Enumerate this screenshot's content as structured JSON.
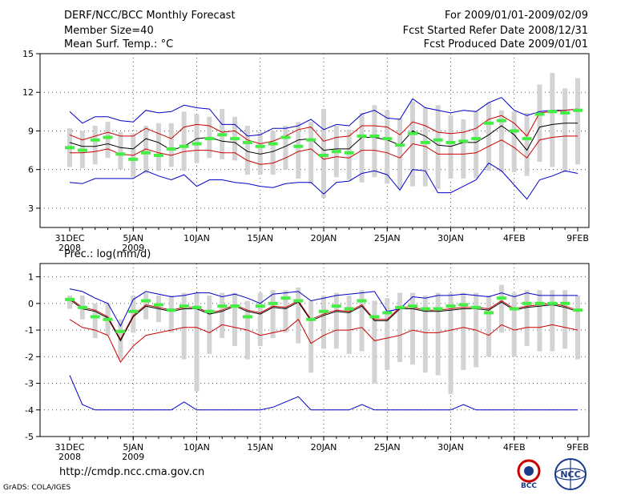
{
  "header": {
    "line1_left": "DERF/NCC/BCC Monthly Forecast",
    "line2_left": "Member Size=40",
    "line3_left": "Mean Surf. Temp.: °C",
    "line1_right": "For 2009/01/01-2009/02/09",
    "line2_right": "Fcst Started Refer Date 2008/12/31",
    "line3_right": "Fcst Produced Date 2009/01/01"
  },
  "footer": {
    "url": "http://cmdp.ncc.cma.gov.cn",
    "grads": "GrADS: COLA/IGES",
    "logo_bcc": "BCC",
    "logo_ncc": "NCC"
  },
  "colors": {
    "box": "#d3d3d3",
    "marker": "#44ee44",
    "mean": "#000000",
    "spread": "#cc0000",
    "extreme": "#0000cc",
    "grid": "#555555"
  },
  "chart_data": [
    {
      "type": "box",
      "title": "Mean Surf. Temp.: °C",
      "ylim": [
        1.5,
        15
      ],
      "yticks": [
        "3",
        "6",
        "9",
        "12",
        "15"
      ],
      "xticks": [
        "31DEC",
        "5JAN",
        "10JAN",
        "15JAN",
        "20JAN",
        "25JAN",
        "30JAN",
        "4FEB",
        "9FEB"
      ],
      "xtick_sub": [
        "2008",
        "2009",
        "",
        "",
        "",
        "",
        "",
        "",
        ""
      ],
      "series": [
        {
          "name": "median",
          "values": [
            7.7,
            7.5,
            8.3,
            8.5,
            7.2,
            6.8,
            7.3,
            7.1,
            7.6,
            7.8,
            8.0,
            8.4,
            8.7,
            8.4,
            8.1,
            7.8,
            8.0,
            8.5,
            7.8,
            8.3,
            7.1,
            7.4,
            7.3,
            8.6,
            8.6,
            8.4,
            7.9,
            8.8,
            8.1,
            8.3,
            8.1,
            8.2,
            8.4,
            9.6,
            9.8,
            9.0,
            8.4,
            10.3,
            10.5,
            10.4,
            10.6
          ]
        },
        {
          "name": "q1",
          "values": [
            6.5,
            6.6,
            6.8,
            7.2,
            6.4,
            6.1,
            6.4,
            6.4,
            6.8,
            6.8,
            7.0,
            7.2,
            7.3,
            7.0,
            6.5,
            6.2,
            6.3,
            6.8,
            6.6,
            7.0,
            6.2,
            6.6,
            6.3,
            7.1,
            7.0,
            6.8,
            6.3,
            7.3,
            6.8,
            6.5,
            6.5,
            6.4,
            6.7,
            7.3,
            7.5,
            6.9,
            6.5,
            7.7,
            8.0,
            7.7,
            8.0
          ]
        },
        {
          "name": "q3",
          "values": [
            8.7,
            8.8,
            9.2,
            9.3,
            8.4,
            8.1,
            8.8,
            8.6,
            8.5,
            9.5,
            9.6,
            9.7,
            9.9,
            9.3,
            8.8,
            8.4,
            8.8,
            9.3,
            9.0,
            9.4,
            8.2,
            8.8,
            8.8,
            10.0,
            10.1,
            9.8,
            9.2,
            10.2,
            9.8,
            9.8,
            9.6,
            9.5,
            9.6,
            10.4,
            10.5,
            9.8,
            9.6,
            11.9,
            12.3,
            12.0,
            12.5
          ]
        },
        {
          "name": "min",
          "values": [
            6.2,
            6.1,
            6.4,
            6.9,
            6.0,
            5.4,
            5.7,
            5.9,
            6.2,
            5.9,
            6.5,
            6.9,
            6.8,
            6.7,
            5.6,
            5.6,
            5.6,
            6.0,
            5.3,
            4.9,
            3.8,
            5.4,
            5.2,
            5.0,
            5.4,
            4.9,
            4.5,
            4.7,
            4.7,
            4.5,
            5.3,
            5.3,
            5.3,
            5.9,
            5.8,
            5.8,
            5.5,
            6.6,
            6.2,
            5.8,
            6.4
          ]
        },
        {
          "name": "max",
          "values": [
            9.2,
            9.0,
            9.4,
            9.7,
            8.9,
            8.8,
            9.4,
            9.6,
            9.6,
            10.5,
            10.3,
            10.1,
            10.7,
            10.1,
            9.4,
            8.9,
            9.0,
            9.4,
            9.7,
            9.7,
            10.7,
            9.4,
            9.1,
            10.4,
            11.0,
            10.6,
            10.0,
            11.3,
            10.8,
            11.0,
            10.2,
            9.9,
            10.5,
            11.2,
            10.6,
            10.5,
            10.4,
            12.6,
            13.5,
            12.3,
            13.1
          ]
        },
        {
          "name": "mean",
          "values": [
            8.1,
            7.8,
            7.8,
            8.0,
            7.7,
            7.6,
            8.4,
            8.1,
            7.5,
            7.8,
            8.4,
            8.5,
            8.2,
            8.1,
            7.4,
            7.2,
            7.4,
            7.8,
            8.3,
            8.4,
            7.5,
            7.6,
            7.6,
            8.5,
            8.5,
            8.3,
            7.9,
            9.0,
            8.6,
            7.9,
            7.8,
            8.1,
            8.1,
            8.7,
            9.4,
            8.7,
            7.5,
            9.3,
            9.5,
            9.6,
            9.6
          ]
        },
        {
          "name": "mean_plus_sd",
          "values": [
            8.7,
            8.3,
            8.6,
            8.9,
            8.6,
            8.6,
            9.2,
            8.8,
            8.4,
            9.3,
            9.5,
            9.4,
            8.9,
            9.0,
            8.3,
            8.0,
            8.2,
            8.6,
            9.1,
            9.3,
            8.2,
            8.5,
            8.6,
            9.4,
            9.4,
            9.3,
            8.7,
            9.7,
            9.4,
            8.9,
            8.8,
            8.9,
            9.2,
            9.9,
            10.2,
            9.6,
            8.6,
            10.4,
            10.5,
            10.6,
            10.7
          ]
        },
        {
          "name": "mean_minus_sd",
          "values": [
            7.3,
            7.3,
            7.4,
            7.6,
            7.2,
            7.1,
            7.6,
            7.3,
            7.1,
            7.4,
            7.5,
            7.5,
            7.3,
            7.3,
            6.7,
            6.4,
            6.5,
            6.9,
            7.4,
            7.6,
            6.8,
            7.0,
            6.9,
            7.5,
            7.5,
            7.3,
            6.9,
            8.0,
            7.8,
            7.2,
            7.2,
            7.2,
            7.3,
            7.8,
            8.3,
            7.7,
            6.9,
            8.3,
            8.5,
            8.6,
            8.6
          ]
        },
        {
          "name": "ens_max",
          "values": [
            10.5,
            9.6,
            10.1,
            10.1,
            9.8,
            9.7,
            10.6,
            10.4,
            10.5,
            11.0,
            10.8,
            10.7,
            9.5,
            9.5,
            8.6,
            8.7,
            9.2,
            9.2,
            9.4,
            9.9,
            9.1,
            9.5,
            9.4,
            10.3,
            10.6,
            10.0,
            9.9,
            11.5,
            10.8,
            10.6,
            10.4,
            10.6,
            10.5,
            11.2,
            11.6,
            10.6,
            10.2,
            10.5,
            10.6,
            10.6,
            10.7
          ]
        },
        {
          "name": "ens_min",
          "values": [
            5.0,
            4.9,
            5.3,
            5.3,
            5.3,
            5.3,
            5.9,
            5.5,
            5.2,
            5.6,
            4.7,
            5.2,
            5.2,
            5.0,
            4.9,
            4.7,
            4.6,
            4.9,
            5.0,
            5.0,
            4.1,
            5.0,
            5.1,
            5.7,
            5.9,
            5.6,
            4.4,
            6.0,
            5.9,
            4.2,
            4.2,
            4.7,
            5.2,
            6.5,
            5.9,
            4.8,
            3.7,
            5.2,
            5.5,
            5.9,
            5.7
          ]
        }
      ]
    },
    {
      "type": "box",
      "title": "Prec.: log(mm/d)",
      "ylim": [
        -5,
        1.5
      ],
      "yticks": [
        "-5",
        "-4",
        "-3",
        "-2",
        "-1",
        "0",
        "1"
      ],
      "xticks": [
        "31DEC",
        "5JAN",
        "10JAN",
        "15JAN",
        "20JAN",
        "25JAN",
        "30JAN",
        "4FEB",
        "9FEB"
      ],
      "xtick_sub": [
        "2008",
        "2009",
        "",
        "",
        "",
        "",
        "",
        "",
        ""
      ],
      "series": [
        {
          "name": "median",
          "values": [
            0.15,
            -0.15,
            -0.5,
            -0.6,
            -1.05,
            -0.3,
            0.1,
            -0.05,
            -0.25,
            -0.1,
            -0.15,
            -0.3,
            -0.1,
            -0.1,
            -0.5,
            -0.1,
            0.0,
            0.2,
            0.1,
            -0.6,
            -0.3,
            -0.1,
            -0.2,
            0.1,
            -0.5,
            -0.35,
            -0.15,
            -0.1,
            -0.2,
            -0.2,
            -0.1,
            -0.05,
            -0.15,
            -0.35,
            0.2,
            -0.2,
            0.0,
            0.0,
            0.0,
            0.0,
            -0.25
          ]
        },
        {
          "name": "q1",
          "values": [
            -0.1,
            -0.6,
            -1.0,
            -1.2,
            -1.7,
            -0.8,
            -0.3,
            -0.5,
            -0.8,
            -0.7,
            -0.9,
            -1.2,
            -0.9,
            -0.9,
            -1.2,
            -0.8,
            -0.7,
            -0.5,
            -0.6,
            -1.4,
            -1.0,
            -0.9,
            -1.0,
            -0.7,
            -1.4,
            -1.3,
            -1.1,
            -1.0,
            -1.1,
            -1.2,
            -1.0,
            -0.9,
            -1.0,
            -1.2,
            -0.5,
            -0.9,
            -0.8,
            -0.8,
            -0.8,
            -0.8,
            -1.0
          ]
        },
        {
          "name": "q3",
          "values": [
            0.2,
            0.1,
            -0.3,
            -0.3,
            -0.8,
            0.0,
            0.2,
            0.1,
            0.0,
            0.1,
            0.1,
            0.0,
            0.1,
            0.1,
            -0.2,
            0.1,
            0.2,
            0.3,
            0.3,
            -0.3,
            0.0,
            0.1,
            0.0,
            0.3,
            -0.2,
            -0.1,
            0.1,
            0.1,
            0.0,
            0.0,
            0.1,
            0.1,
            0.1,
            0.0,
            0.4,
            0.1,
            0.2,
            0.2,
            0.2,
            0.2,
            0.1
          ]
        },
        {
          "name": "min",
          "values": [
            -0.2,
            -0.6,
            -1.3,
            -1.2,
            -2.1,
            -1.1,
            -0.6,
            -0.7,
            -1.1,
            -2.1,
            -3.3,
            -1.9,
            -1.3,
            -1.6,
            -2.1,
            -1.6,
            -1.3,
            -1.1,
            -1.5,
            -2.6,
            -1.7,
            -1.7,
            -1.9,
            -1.8,
            -3.0,
            -2.5,
            -2.2,
            -2.3,
            -2.6,
            -2.7,
            -3.4,
            -2.5,
            -2.4,
            -2.0,
            -1.1,
            -2.0,
            -1.6,
            -1.8,
            -1.8,
            -1.7,
            -2.1
          ]
        },
        {
          "name": "max",
          "values": [
            0.3,
            0.3,
            0.0,
            0.0,
            -0.6,
            0.3,
            0.4,
            0.3,
            0.3,
            0.4,
            0.4,
            0.3,
            0.4,
            0.4,
            0.1,
            0.4,
            0.5,
            0.5,
            0.6,
            0.1,
            0.3,
            0.4,
            0.3,
            0.5,
            0.1,
            0.2,
            0.4,
            0.4,
            0.3,
            0.4,
            0.4,
            0.4,
            0.4,
            0.3,
            0.7,
            0.4,
            0.5,
            0.5,
            0.5,
            0.5,
            0.3
          ]
        },
        {
          "name": "mean",
          "values": [
            0.15,
            -0.2,
            -0.3,
            -0.55,
            -1.4,
            -0.5,
            -0.1,
            -0.2,
            -0.3,
            -0.2,
            -0.2,
            -0.4,
            -0.3,
            -0.1,
            -0.3,
            -0.4,
            -0.15,
            -0.2,
            0.05,
            -0.65,
            -0.45,
            -0.3,
            -0.35,
            -0.1,
            -0.65,
            -0.65,
            -0.2,
            -0.2,
            -0.3,
            -0.3,
            -0.25,
            -0.2,
            -0.2,
            -0.25,
            0.05,
            -0.25,
            -0.15,
            -0.1,
            -0.05,
            -0.15,
            -0.3
          ]
        },
        {
          "name": "mean_plus_sd",
          "values": [
            0.2,
            -0.15,
            -0.25,
            -0.5,
            -1.35,
            -0.45,
            -0.05,
            -0.15,
            -0.25,
            -0.15,
            -0.15,
            -0.35,
            -0.25,
            -0.05,
            -0.25,
            -0.35,
            -0.1,
            -0.15,
            0.1,
            -0.6,
            -0.4,
            -0.25,
            -0.3,
            -0.05,
            -0.6,
            -0.6,
            -0.15,
            -0.15,
            -0.25,
            -0.25,
            -0.2,
            -0.15,
            -0.15,
            -0.2,
            0.1,
            -0.2,
            -0.1,
            -0.05,
            0.0,
            -0.1,
            -0.25
          ]
        },
        {
          "name": "mean_minus_sd",
          "values": [
            -0.6,
            -0.9,
            -1.0,
            -1.2,
            -2.2,
            -1.6,
            -1.2,
            -1.1,
            -1.0,
            -0.9,
            -0.9,
            -1.1,
            -0.8,
            -0.9,
            -1.0,
            -1.2,
            -1.1,
            -1.0,
            -0.6,
            -1.5,
            -1.2,
            -1.0,
            -1.0,
            -0.9,
            -1.4,
            -1.3,
            -1.2,
            -1.0,
            -1.1,
            -1.1,
            -1.0,
            -0.9,
            -1.0,
            -1.2,
            -0.8,
            -1.0,
            -0.9,
            -0.9,
            -0.8,
            -0.9,
            -1.0
          ]
        },
        {
          "name": "ens_max",
          "values": [
            0.55,
            0.45,
            0.2,
            0.0,
            -0.85,
            0.15,
            0.45,
            0.35,
            0.25,
            0.3,
            0.4,
            0.4,
            0.25,
            0.35,
            0.2,
            0.0,
            0.35,
            0.4,
            0.45,
            0.1,
            0.2,
            0.3,
            0.35,
            0.4,
            0.45,
            -0.3,
            -0.2,
            0.25,
            0.2,
            0.3,
            0.3,
            0.35,
            0.3,
            0.25,
            0.4,
            0.25,
            0.4,
            0.3,
            0.3,
            0.3,
            0.3
          ]
        },
        {
          "name": "ens_min",
          "values": [
            -2.7,
            -3.8,
            -4.0,
            -4.0,
            -4.0,
            -4.0,
            -4.0,
            -4.0,
            -4.0,
            -3.7,
            -4.0,
            -4.0,
            -4.0,
            -4.0,
            -4.0,
            -4.0,
            -3.9,
            -3.7,
            -3.5,
            -4.0,
            -4.0,
            -4.0,
            -4.0,
            -3.8,
            -4.0,
            -4.0,
            -4.0,
            -4.0,
            -4.0,
            -4.0,
            -4.0,
            -3.8,
            -4.0,
            -4.0,
            -4.0,
            -4.0,
            -4.0,
            -4.0,
            -4.0,
            -4.0,
            -4.0
          ]
        }
      ]
    }
  ]
}
